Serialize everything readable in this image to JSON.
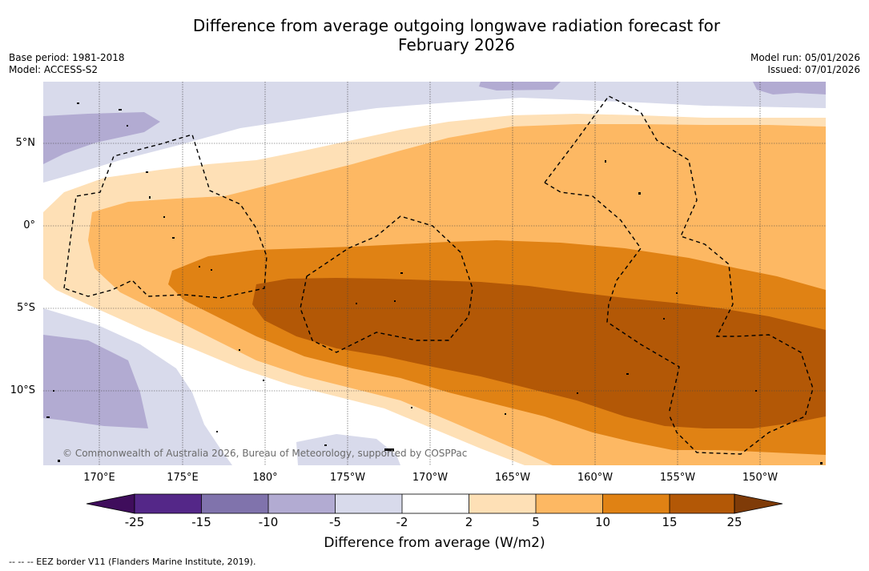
{
  "title": {
    "line1": "Difference from average outgoing longwave radiation forecast for",
    "line2": "February 2026"
  },
  "meta": {
    "base_period": "Base period: 1981-2018",
    "model": "Model: ACCESS-S2",
    "model_run": "Model run: 05/01/2026",
    "issued": "Issued: 07/01/2026"
  },
  "map": {
    "lat_labels": [
      "5°N",
      "0°",
      "5°S",
      "10°S"
    ],
    "lon_labels": [
      "170°E",
      "175°E",
      "180°",
      "175°W",
      "170°W",
      "165°W",
      "160°W",
      "155°W",
      "150°W"
    ],
    "copyright": "© Commonwealth of Australia 2026, Bureau of Meteorology, supported by COSPPac",
    "colors": {
      "neg_25": "#3f0d5c",
      "neg_15": "#542788",
      "neg_10": "#8073ac",
      "neg_5": "#b2abd2",
      "neg_2": "#d8daeb",
      "neutral": "#ffffff",
      "pos_2": "#fee0b6",
      "pos_5": "#fdb863",
      "pos_10": "#e08214",
      "pos_15": "#b35806",
      "pos_25": "#7f3b08"
    }
  },
  "colorbar": {
    "ticks": [
      "-25",
      "-15",
      "-10",
      "-5",
      "-2",
      "2",
      "5",
      "10",
      "15",
      "25"
    ],
    "label": "Difference from average (W/m2)"
  },
  "legend_note": "-- -- -- EEZ border V11 (Flanders Marine Institute, 2019)."
}
